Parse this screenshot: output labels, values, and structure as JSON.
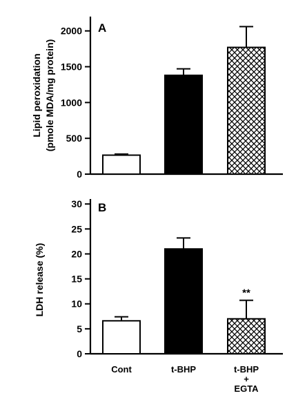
{
  "chart_data": [
    {
      "type": "bar",
      "panel_label": "A",
      "ylabel_line1": "Lipid peroxidation",
      "ylabel_line2": "(pmole MDA/mg protein)",
      "categories": [
        "Cont",
        "t-BHP",
        "t-BHP + EGTA"
      ],
      "values": [
        265,
        1380,
        1770
      ],
      "errors": [
        15,
        90,
        290
      ],
      "ylim": [
        0,
        2200
      ],
      "yticks": [
        0,
        500,
        1000,
        1500,
        2000
      ],
      "bar_fills": [
        "white",
        "black",
        "crosshatch"
      ],
      "annotations": [
        "",
        "",
        ""
      ]
    },
    {
      "type": "bar",
      "panel_label": "B",
      "ylabel_line1": "LDH release (%)",
      "categories": [
        "Cont",
        "t-BHP",
        "t-BHP + EGTA"
      ],
      "category_labels": [
        [
          "Cont"
        ],
        [
          "t-BHP"
        ],
        [
          "t-BHP",
          "+",
          "EGTA"
        ]
      ],
      "values": [
        6.6,
        21.0,
        7.0
      ],
      "errors": [
        0.8,
        2.2,
        3.7
      ],
      "ylim": [
        0,
        31
      ],
      "yticks": [
        0,
        5,
        10,
        15,
        20,
        25,
        30
      ],
      "bar_fills": [
        "white",
        "black",
        "crosshatch"
      ],
      "annotations": [
        "",
        "",
        "**"
      ]
    }
  ]
}
